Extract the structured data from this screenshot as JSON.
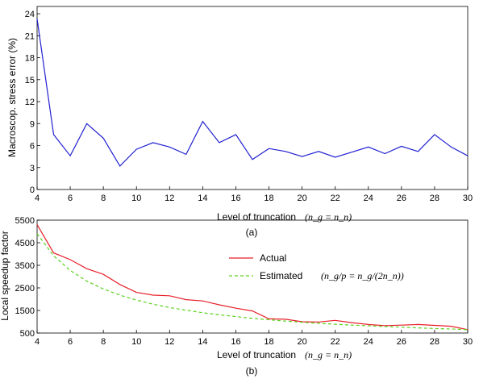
{
  "chart_data": [
    {
      "type": "line",
      "title": "",
      "xlabel": "Level of truncation",
      "xlabel_math": "(n_g = n_n)",
      "ylabel": "Macroscop. stress error (%)",
      "caption": "(a)",
      "xlim": [
        4,
        30
      ],
      "ylim": [
        0,
        25
      ],
      "xticks": [
        4,
        6,
        8,
        10,
        12,
        14,
        16,
        18,
        20,
        22,
        24,
        26,
        28,
        30
      ],
      "yticks": [
        0,
        3,
        6,
        9,
        12,
        15,
        18,
        21,
        24
      ],
      "grid": false,
      "x": [
        4,
        5,
        6,
        7,
        8,
        9,
        10,
        11,
        12,
        13,
        14,
        15,
        16,
        17,
        18,
        19,
        20,
        21,
        22,
        23,
        24,
        25,
        26,
        27,
        28,
        29,
        30
      ],
      "series": [
        {
          "name": "",
          "color": "#2020d0",
          "values": [
            23.3,
            7.5,
            4.6,
            9.0,
            7.0,
            3.2,
            5.5,
            6.4,
            5.8,
            4.8,
            9.3,
            6.4,
            7.5,
            4.1,
            5.6,
            5.2,
            4.5,
            5.2,
            4.4,
            5.1,
            5.8,
            4.9,
            5.9,
            5.2,
            7.5,
            5.8,
            4.6
          ]
        }
      ]
    },
    {
      "type": "line",
      "title": "",
      "xlabel": "Level of truncation",
      "xlabel_math": "(n_g = n_n)",
      "ylabel": "Local speedup factor",
      "caption": "(b)",
      "xlim": [
        4,
        30
      ],
      "ylim": [
        500,
        5500
      ],
      "xticks": [
        4,
        6,
        8,
        10,
        12,
        14,
        16,
        18,
        20,
        22,
        24,
        26,
        28,
        30
      ],
      "yticks": [
        500,
        1500,
        2500,
        3500,
        4500,
        5500
      ],
      "grid": false,
      "legend_position": "center",
      "x": [
        4,
        5,
        6,
        7,
        8,
        9,
        10,
        11,
        12,
        13,
        14,
        15,
        16,
        17,
        18,
        19,
        20,
        21,
        22,
        23,
        24,
        25,
        26,
        27,
        28,
        29,
        30
      ],
      "formula": "(n_g/p = n_g/(2n_n))",
      "series": [
        {
          "name": "Actual",
          "color": "#e8202a",
          "dash": "solid",
          "values": [
            5300,
            4050,
            3750,
            3350,
            3100,
            2650,
            2300,
            2180,
            2150,
            1980,
            1920,
            1750,
            1600,
            1480,
            1130,
            1110,
            1000,
            990,
            1060,
            960,
            880,
            830,
            850,
            880,
            840,
            800,
            650
          ]
        },
        {
          "name": "Estimated",
          "color": "#5ad21e",
          "dash": "dashed",
          "values": [
            4900,
            3920,
            3270,
            2800,
            2450,
            2180,
            1960,
            1780,
            1630,
            1510,
            1400,
            1310,
            1230,
            1150,
            1090,
            1030,
            980,
            930,
            890,
            850,
            820,
            790,
            760,
            730,
            700,
            680,
            650
          ]
        }
      ]
    }
  ]
}
